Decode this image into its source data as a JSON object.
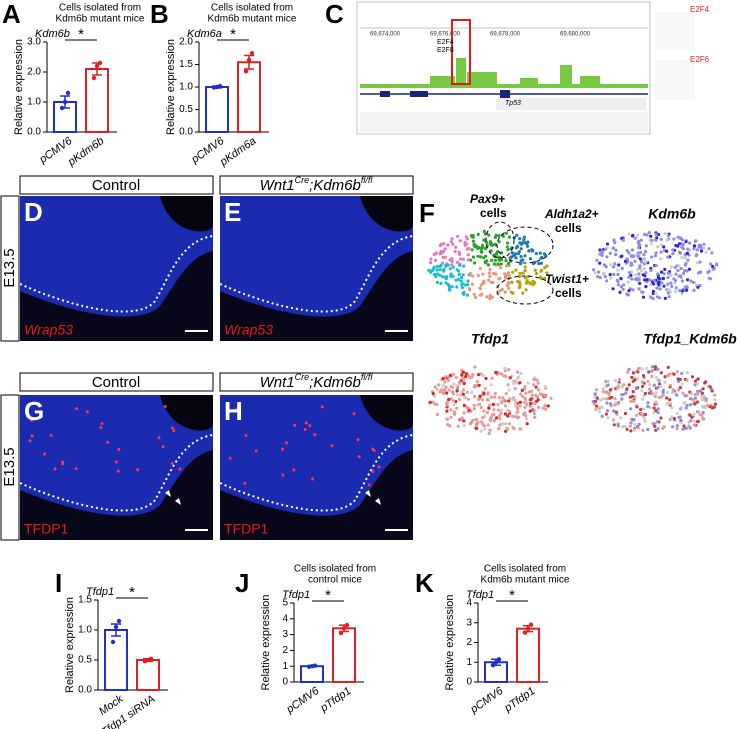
{
  "panel_letters": [
    "A",
    "B",
    "C",
    "D",
    "E",
    "F",
    "G",
    "H",
    "I",
    "J",
    "K"
  ],
  "genome_browser": {
    "tracks": [
      "E2F4",
      "E2F8"
    ],
    "gene": "Tp53",
    "motifs": [
      "E2F4",
      "E2F6"
    ]
  },
  "histology": {
    "stage": "E13.5",
    "control": "Control",
    "mutant": {
      "gene": "Wnt1",
      "sup1": "Cre",
      "rest": ";Kdm6b",
      "sup2": "fl/fl"
    },
    "stains": [
      "Wrap53",
      "TFDP1"
    ]
  },
  "umap": {
    "clusters": [
      [
        "Pax9+",
        "cells"
      ],
      [
        "Aldh1a2+",
        "cells"
      ],
      [
        "Twist1+",
        "cells"
      ]
    ],
    "titles": [
      "Kdm6b",
      "Tfdp1",
      "Tfdp1_Kdm6b"
    ]
  },
  "chart_data": [
    {
      "type": "bar",
      "title": [
        "Cells isolated from",
        "Kdm6b mutant mice"
      ],
      "gene": "Kdm6b",
      "ylabel": "Relative expression",
      "categories": [
        "pCMV6",
        "pKdm6b"
      ],
      "values": [
        1.0,
        2.1
      ],
      "errors": [
        0.2,
        0.2
      ],
      "points": [
        [
          0.8,
          1.0,
          1.3
        ],
        [
          1.8,
          2.2,
          2.3
        ]
      ],
      "colors": [
        "#1f2fd0",
        "#e02020"
      ],
      "ylim": [
        0,
        3
      ],
      "yticks": [
        {
          "value": 0,
          "label": "0.0"
        },
        {
          "value": 1,
          "label": "1.0"
        },
        {
          "value": 2,
          "label": "2.0"
        },
        {
          "value": 3,
          "label": "3.0"
        }
      ],
      "significance": "*"
    },
    {
      "type": "bar",
      "title": [
        "Cells isolated from",
        "Kdm6b mutant mice"
      ],
      "gene": "Kdm6a",
      "ylabel": "Relative expression",
      "categories": [
        "pCMV6",
        "pKdm6a"
      ],
      "values": [
        1.0,
        1.55
      ],
      "errors": [
        0.02,
        0.15
      ],
      "points": [
        [
          0.99,
          1.0,
          1.02
        ],
        [
          1.35,
          1.6,
          1.75
        ]
      ],
      "colors": [
        "#1f2fd0",
        "#e02020"
      ],
      "ylim": [
        0,
        2
      ],
      "yticks": [
        {
          "value": 0,
          "label": "0.0"
        },
        {
          "value": 0.5,
          "label": "0.5"
        },
        {
          "value": 1,
          "label": "1.0"
        },
        {
          "value": 1.5,
          "label": "1.5"
        },
        {
          "value": 2,
          "label": "2.0"
        }
      ],
      "significance": "*"
    },
    {
      "type": "bar",
      "gene": "Tfdp1",
      "ylabel": "Relative expression",
      "categories": [
        "Mock",
        "Tfdp1 siRNA"
      ],
      "values": [
        1.0,
        0.5
      ],
      "errors": [
        0.1,
        0.02
      ],
      "points": [
        [
          0.8,
          1.05,
          1.15
        ],
        [
          0.48,
          0.5,
          0.52
        ]
      ],
      "colors": [
        "#1f2fd0",
        "#e02020"
      ],
      "ylim": [
        0,
        1.5
      ],
      "yticks": [
        {
          "value": 0,
          "label": "0.0"
        },
        {
          "value": 0.5,
          "label": "0.5"
        },
        {
          "value": 1,
          "label": "1.0"
        },
        {
          "value": 1.5,
          "label": "1.5"
        }
      ],
      "significance": "*"
    },
    {
      "type": "bar",
      "title": [
        "Cells isolated from",
        "control mice"
      ],
      "gene": "Tfdp1",
      "ylabel": "Relative expression",
      "categories": [
        "pCMV6",
        "pTfdp1"
      ],
      "values": [
        1.0,
        3.4
      ],
      "errors": [
        0.03,
        0.2
      ],
      "points": [
        [
          0.97,
          1.0,
          1.03
        ],
        [
          3.1,
          3.4,
          3.6
        ]
      ],
      "colors": [
        "#1f2fd0",
        "#e02020"
      ],
      "ylim": [
        0,
        5
      ],
      "yticks": [
        0,
        1,
        2,
        3,
        4,
        5
      ],
      "significance": "*"
    },
    {
      "type": "bar",
      "title": [
        "Cells isolated from",
        "Kdm6b mutant mice"
      ],
      "gene": "Tfdp1",
      "ylabel": "Relative expression",
      "categories": [
        "pCMV6",
        "pTfdp1"
      ],
      "values": [
        1.0,
        2.7
      ],
      "errors": [
        0.15,
        0.15
      ],
      "points": [
        [
          0.85,
          1.0,
          1.15
        ],
        [
          2.5,
          2.7,
          2.9
        ]
      ],
      "colors": [
        "#1f2fd0",
        "#e02020"
      ],
      "ylim": [
        0,
        4
      ],
      "yticks": [
        0,
        1,
        2,
        3,
        4
      ],
      "significance": "*"
    }
  ]
}
